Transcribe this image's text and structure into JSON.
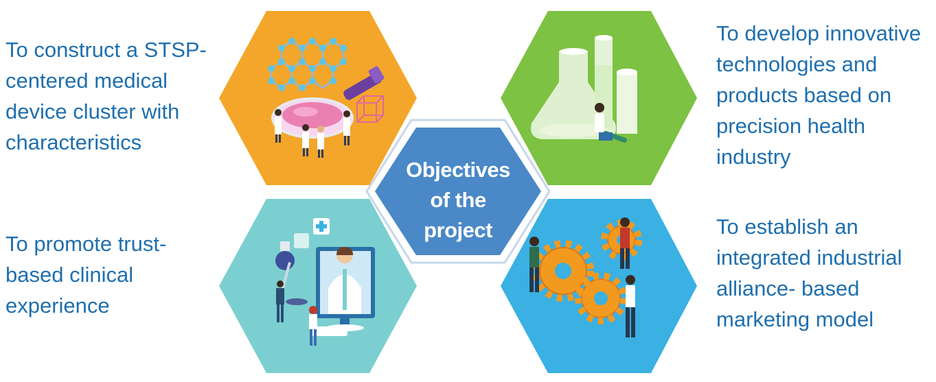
{
  "center": {
    "lines": [
      "Objectives",
      "of the",
      "project"
    ]
  },
  "objectives": {
    "top_left": {
      "lines": [
        "To construct a STSP-",
        "centered medical",
        "device cluster with",
        "characteristics"
      ]
    },
    "top_right": {
      "lines": [
        "To develop innovative",
        "technologies and",
        "products based on",
        "precision health",
        "industry"
      ]
    },
    "bottom_left": {
      "lines": [
        "To promote trust-",
        "based clinical",
        "experience"
      ]
    },
    "bottom_right": {
      "lines": [
        "To establish an",
        "integrated industrial",
        "alliance- based",
        "marketing model"
      ]
    }
  },
  "colors": {
    "text": "#1f6fae",
    "center_fill": "#4a88c7",
    "hex_top_left": "#f4a62a",
    "hex_top_right": "#7dc242",
    "hex_bottom_left": "#7ccfd0",
    "hex_bottom_right": "#3ab0e3"
  },
  "illustrations": {
    "top_left": "laboratory-research-illustration",
    "top_right": "flask-scientist-illustration",
    "bottom_left": "telemedicine-doctor-illustration",
    "bottom_right": "gear-teamwork-illustration"
  }
}
